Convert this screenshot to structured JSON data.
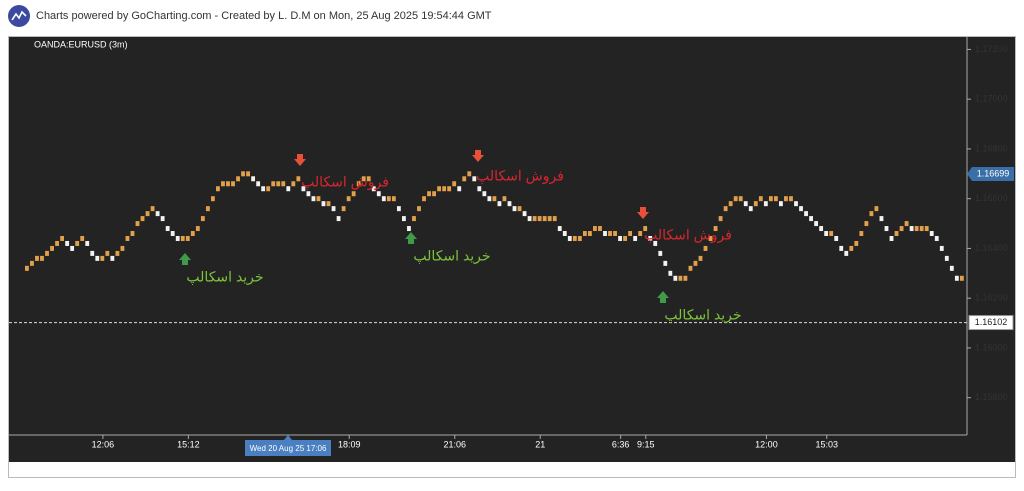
{
  "header": {
    "text": "Charts powered by GoCharting.com - Created by L. D.M on Mon, 25 Aug 2025 19:54:44 GMT"
  },
  "chart_data": {
    "type": "renko",
    "title": "OANDA:EURUSD (3m)",
    "up_color": "#e3a04a",
    "down_color": "#f2f2f2",
    "background": "#232323",
    "ylim": [
      1.1565,
      1.1725
    ],
    "yticks": [
      {
        "value": 1.172,
        "label": "1.17200"
      },
      {
        "value": 1.17,
        "label": "1.17000"
      },
      {
        "value": 1.168,
        "label": "1.16800"
      },
      {
        "value": 1.166,
        "label": "1.16600"
      },
      {
        "value": 1.164,
        "label": "1.16400"
      },
      {
        "value": 1.162,
        "label": "1.16200"
      },
      {
        "value": 1.16,
        "label": "1.16000"
      },
      {
        "value": 1.158,
        "label": "1.15800"
      }
    ],
    "last_price": 1.16699,
    "reference_line": 1.16102,
    "crosshair_label": "Wed 20 Aug 25 17:06",
    "categories": [
      null,
      null,
      null,
      null,
      null,
      null,
      null,
      null,
      null,
      null,
      null,
      null,
      null,
      null,
      null,
      "12:06",
      null,
      null,
      null,
      null,
      null,
      null,
      null,
      null,
      null,
      null,
      null,
      null,
      null,
      null,
      null,
      null,
      "15:12",
      null,
      null,
      null,
      null,
      null,
      null,
      null,
      null,
      null,
      null,
      null,
      null,
      null,
      null,
      null,
      null,
      null,
      null,
      null,
      null,
      null,
      null,
      null,
      null,
      null,
      null,
      null,
      null,
      null,
      null,
      null,
      "18:09",
      null,
      null,
      null,
      null,
      null,
      null,
      null,
      null,
      null,
      null,
      null,
      null,
      null,
      null,
      null,
      null,
      null,
      null,
      null,
      null,
      "21:06",
      null,
      null,
      null,
      null,
      null,
      null,
      null,
      null,
      null,
      null,
      null,
      null,
      null,
      null,
      null,
      null,
      "21",
      null,
      null,
      null,
      null,
      null,
      null,
      null,
      null,
      null,
      null,
      null,
      null,
      null,
      null,
      null,
      "6:36",
      null,
      null,
      null,
      null,
      "9:15",
      null,
      null,
      null,
      null,
      null,
      null,
      null,
      null,
      null,
      null,
      null,
      null,
      null,
      null,
      null,
      null,
      null,
      null,
      null,
      null,
      null,
      null,
      null,
      "12:00",
      null,
      null,
      null,
      null,
      null,
      null,
      null,
      null,
      null,
      null,
      null,
      "15:03",
      null,
      null,
      null,
      null,
      null,
      null,
      null,
      null,
      null,
      null,
      null,
      null,
      null,
      null,
      null,
      null,
      null,
      null,
      null,
      null,
      null,
      null,
      null,
      null,
      null,
      null,
      null
    ],
    "values": [
      1.1632,
      1.1634,
      1.1636,
      1.1636,
      1.1638,
      1.164,
      1.1642,
      1.1644,
      1.1642,
      1.164,
      1.1642,
      1.1644,
      1.1642,
      1.1638,
      1.1636,
      1.1636,
      1.1638,
      1.1636,
      1.1638,
      1.164,
      1.1644,
      1.1646,
      1.165,
      1.1652,
      1.1654,
      1.1656,
      1.1654,
      1.1652,
      1.1648,
      1.1646,
      1.1644,
      1.1644,
      1.1644,
      1.1646,
      1.1648,
      1.1652,
      1.1656,
      1.166,
      1.1664,
      1.1666,
      1.1666,
      1.1666,
      1.1668,
      1.167,
      1.167,
      1.1668,
      1.1666,
      1.1664,
      1.1664,
      1.1666,
      1.1666,
      1.1666,
      1.1664,
      1.1666,
      1.1668,
      1.1664,
      1.1662,
      1.166,
      1.166,
      1.1658,
      1.1658,
      1.1656,
      1.1652,
      1.1656,
      1.166,
      1.1662,
      1.1666,
      1.1668,
      1.1668,
      1.1664,
      1.1662,
      1.166,
      1.166,
      1.166,
      1.1656,
      1.1652,
      1.1648,
      1.1652,
      1.1656,
      1.166,
      1.1662,
      1.1662,
      1.1664,
      1.1664,
      1.1664,
      1.1666,
      1.1664,
      1.1668,
      1.167,
      1.1668,
      1.1664,
      1.1662,
      1.166,
      1.166,
      1.1658,
      1.166,
      1.1658,
      1.1656,
      1.1656,
      1.1654,
      1.1652,
      1.1652,
      1.1652,
      1.1652,
      1.1652,
      1.1652,
      1.1648,
      1.1646,
      1.1644,
      1.1644,
      1.1644,
      1.1646,
      1.1646,
      1.1648,
      1.1648,
      1.1646,
      1.1646,
      1.1646,
      1.1644,
      1.1644,
      1.1646,
      1.1644,
      1.1646,
      1.1648,
      1.1644,
      1.1642,
      1.1638,
      1.1634,
      1.163,
      1.1628,
      1.1628,
      1.1628,
      1.1632,
      1.1634,
      1.1636,
      1.164,
      1.1644,
      1.1648,
      1.1652,
      1.1656,
      1.1658,
      1.166,
      1.166,
      1.1658,
      1.1656,
      1.1658,
      1.166,
      1.1658,
      1.166,
      1.166,
      1.1658,
      1.166,
      1.166,
      1.1658,
      1.1656,
      1.1654,
      1.1652,
      1.165,
      1.1648,
      1.1646,
      1.1646,
      1.1644,
      1.164,
      1.1638,
      1.164,
      1.1642,
      1.1646,
      1.165,
      1.1654,
      1.1656,
      1.1652,
      1.1648,
      1.1644,
      1.1646,
      1.1648,
      1.165,
      1.1648,
      1.1648,
      1.1648,
      1.1648,
      1.1646,
      1.1644,
      1.164,
      1.1636,
      1.1632,
      1.1628,
      1.1628
    ],
    "sell_color": "#e8503a",
    "buy_color": "#3f9a4a",
    "sell_text_color": "#d8262e",
    "buy_text_color": "#7cc43a",
    "annotations": [
      {
        "kind": "sell",
        "text": "فروش اسکالپ"
      },
      {
        "kind": "sell",
        "text": "فروش اسکالپ"
      },
      {
        "kind": "sell",
        "text": "فروش اسکالپ"
      },
      {
        "kind": "buy",
        "text": "خرید اسکالپ"
      },
      {
        "kind": "buy",
        "text": "خرید اسکالپ"
      },
      {
        "kind": "buy",
        "text": "خرید اسکالپ"
      }
    ]
  }
}
